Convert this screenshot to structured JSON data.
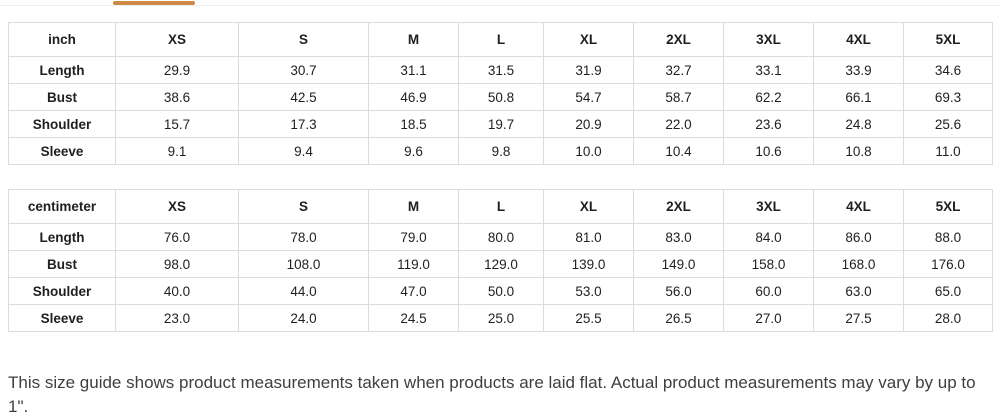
{
  "tabs": {
    "active_indicator_color": "#cf8a4a"
  },
  "tables": [
    {
      "unit_header": "inch",
      "columns": [
        "XS",
        "S",
        "M",
        "L",
        "XL",
        "2XL",
        "3XL",
        "4XL",
        "5XL"
      ],
      "rows": [
        {
          "label": "Length",
          "values": [
            "29.9",
            "30.7",
            "31.1",
            "31.5",
            "31.9",
            "32.7",
            "33.1",
            "33.9",
            "34.6"
          ]
        },
        {
          "label": "Bust",
          "values": [
            "38.6",
            "42.5",
            "46.9",
            "50.8",
            "54.7",
            "58.7",
            "62.2",
            "66.1",
            "69.3"
          ]
        },
        {
          "label": "Shoulder",
          "values": [
            "15.7",
            "17.3",
            "18.5",
            "19.7",
            "20.9",
            "22.0",
            "23.6",
            "24.8",
            "25.6"
          ]
        },
        {
          "label": "Sleeve",
          "values": [
            "9.1",
            "9.4",
            "9.6",
            "9.8",
            "10.0",
            "10.4",
            "10.6",
            "10.8",
            "11.0"
          ]
        }
      ]
    },
    {
      "unit_header": "centimeter",
      "columns": [
        "XS",
        "S",
        "M",
        "L",
        "XL",
        "2XL",
        "3XL",
        "4XL",
        "5XL"
      ],
      "rows": [
        {
          "label": "Length",
          "values": [
            "76.0",
            "78.0",
            "79.0",
            "80.0",
            "81.0",
            "83.0",
            "84.0",
            "86.0",
            "88.0"
          ]
        },
        {
          "label": "Bust",
          "values": [
            "98.0",
            "108.0",
            "119.0",
            "129.0",
            "139.0",
            "149.0",
            "158.0",
            "168.0",
            "176.0"
          ]
        },
        {
          "label": "Shoulder",
          "values": [
            "40.0",
            "44.0",
            "47.0",
            "50.0",
            "53.0",
            "56.0",
            "60.0",
            "63.0",
            "65.0"
          ]
        },
        {
          "label": "Sleeve",
          "values": [
            "23.0",
            "24.0",
            "24.5",
            "25.0",
            "25.5",
            "26.5",
            "27.0",
            "27.5",
            "28.0"
          ]
        }
      ]
    }
  ],
  "note": "This size guide shows product measurements taken when products are laid flat. Actual product measurements may vary by up to 1\"."
}
